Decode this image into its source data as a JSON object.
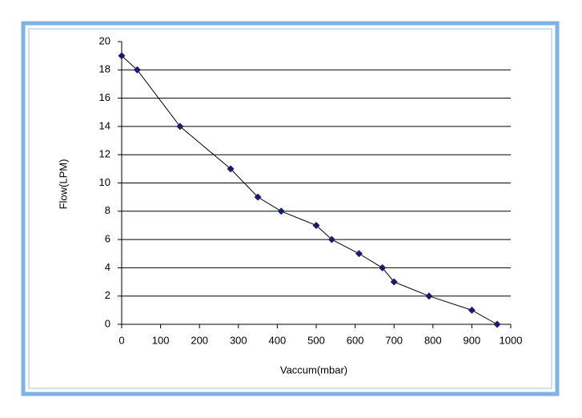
{
  "chart_data": {
    "type": "line",
    "xlabel": "Vaccum(mbar)",
    "ylabel": "Flow(LPM)",
    "x": [
      0,
      40,
      150,
      280,
      350,
      410,
      500,
      540,
      610,
      670,
      700,
      790,
      900,
      965
    ],
    "values": [
      19,
      18,
      14,
      11,
      9,
      8,
      7,
      6,
      5,
      4,
      3,
      2,
      1,
      0
    ],
    "color": "#000000",
    "marker_color": "#1a1a6e",
    "xlim": [
      0,
      1000
    ],
    "xticks": [
      0,
      100,
      200,
      300,
      400,
      500,
      600,
      700,
      800,
      900,
      1000
    ],
    "ylim": [
      0,
      20
    ],
    "yticks": [
      0,
      2,
      4,
      6,
      8,
      10,
      12,
      14,
      16,
      18,
      20
    ],
    "grid": true
  }
}
